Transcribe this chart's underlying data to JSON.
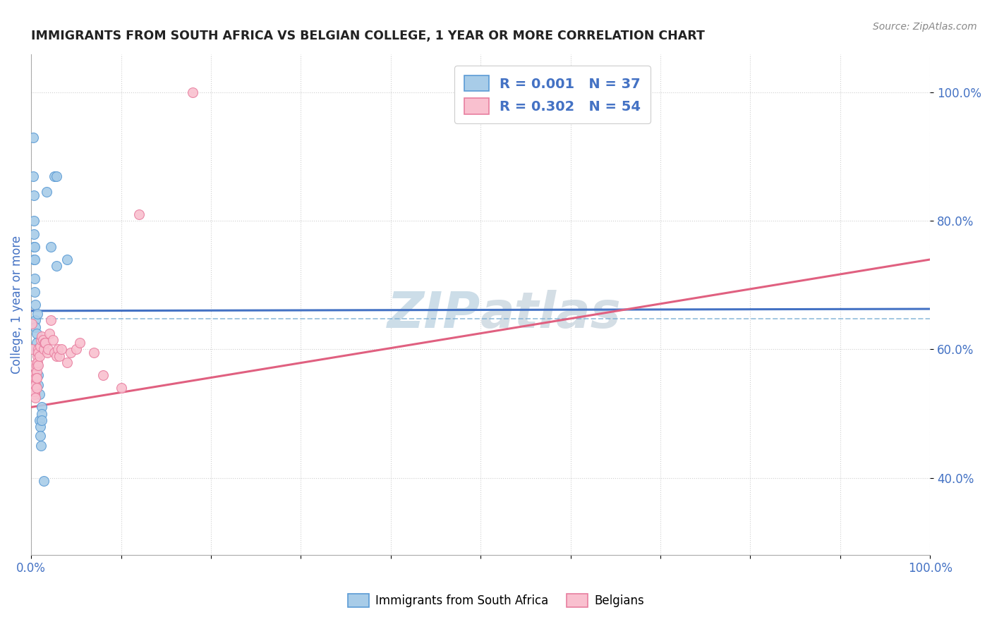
{
  "title": "IMMIGRANTS FROM SOUTH AFRICA VS BELGIAN COLLEGE, 1 YEAR OR MORE CORRELATION CHART",
  "source_text": "Source: ZipAtlas.com",
  "ylabel": "College, 1 year or more",
  "xlim": [
    0.0,
    1.0
  ],
  "ylim": [
    0.28,
    1.06
  ],
  "xtick_labels": [
    "0.0%",
    "",
    "",
    "",
    "",
    "",
    "",
    "",
    "",
    "",
    "100.0%"
  ],
  "xtick_vals": [
    0.0,
    0.1,
    0.2,
    0.3,
    0.4,
    0.5,
    0.6,
    0.7,
    0.8,
    0.9,
    1.0
  ],
  "ytick_labels": [
    "40.0%",
    "60.0%",
    "80.0%",
    "100.0%"
  ],
  "ytick_vals": [
    0.4,
    0.6,
    0.8,
    1.0
  ],
  "legend_r1": "R = 0.001",
  "legend_n1": "N = 37",
  "legend_r2": "R = 0.302",
  "legend_n2": "N = 54",
  "color_blue": "#a8cce8",
  "color_pink": "#f9c0cf",
  "edge_blue": "#5b9bd5",
  "edge_pink": "#e87fa0",
  "line_blue": "#4472c4",
  "line_pink": "#e06080",
  "dashed_blue": "#7bafd4",
  "watermark_color": "#ccdde8",
  "background_color": "#ffffff",
  "grid_color": "#bbbbbb",
  "title_color": "#222222",
  "label_color": "#4472c4",
  "tick_color": "#4472c4",
  "source_color": "#888888",
  "blue_scatter": [
    [
      0.002,
      0.93
    ],
    [
      0.002,
      0.87
    ],
    [
      0.003,
      0.84
    ],
    [
      0.003,
      0.8
    ],
    [
      0.003,
      0.78
    ],
    [
      0.003,
      0.76
    ],
    [
      0.003,
      0.74
    ],
    [
      0.004,
      0.76
    ],
    [
      0.004,
      0.74
    ],
    [
      0.004,
      0.71
    ],
    [
      0.004,
      0.69
    ],
    [
      0.005,
      0.67
    ],
    [
      0.005,
      0.645
    ],
    [
      0.005,
      0.635
    ],
    [
      0.006,
      0.625
    ],
    [
      0.006,
      0.61
    ],
    [
      0.006,
      0.6
    ],
    [
      0.007,
      0.655
    ],
    [
      0.007,
      0.595
    ],
    [
      0.007,
      0.575
    ],
    [
      0.008,
      0.56
    ],
    [
      0.008,
      0.545
    ],
    [
      0.009,
      0.53
    ],
    [
      0.009,
      0.49
    ],
    [
      0.01,
      0.48
    ],
    [
      0.01,
      0.465
    ],
    [
      0.011,
      0.45
    ],
    [
      0.012,
      0.51
    ],
    [
      0.012,
      0.5
    ],
    [
      0.012,
      0.49
    ],
    [
      0.014,
      0.395
    ],
    [
      0.022,
      0.76
    ],
    [
      0.026,
      0.87
    ],
    [
      0.028,
      0.87
    ],
    [
      0.04,
      0.74
    ],
    [
      0.017,
      0.845
    ],
    [
      0.028,
      0.73
    ]
  ],
  "pink_scatter": [
    [
      0.001,
      0.64
    ],
    [
      0.001,
      0.6
    ],
    [
      0.002,
      0.575
    ],
    [
      0.002,
      0.56
    ],
    [
      0.002,
      0.545
    ],
    [
      0.003,
      0.535
    ],
    [
      0.003,
      0.56
    ],
    [
      0.003,
      0.55
    ],
    [
      0.003,
      0.54
    ],
    [
      0.004,
      0.53
    ],
    [
      0.004,
      0.55
    ],
    [
      0.004,
      0.535
    ],
    [
      0.004,
      0.545
    ],
    [
      0.004,
      0.535
    ],
    [
      0.005,
      0.525
    ],
    [
      0.005,
      0.555
    ],
    [
      0.005,
      0.545
    ],
    [
      0.006,
      0.54
    ],
    [
      0.006,
      0.575
    ],
    [
      0.006,
      0.565
    ],
    [
      0.006,
      0.555
    ],
    [
      0.006,
      0.555
    ],
    [
      0.007,
      0.59
    ],
    [
      0.007,
      0.58
    ],
    [
      0.008,
      0.575
    ],
    [
      0.008,
      0.6
    ],
    [
      0.008,
      0.595
    ],
    [
      0.009,
      0.59
    ],
    [
      0.01,
      0.605
    ],
    [
      0.011,
      0.615
    ],
    [
      0.012,
      0.62
    ],
    [
      0.013,
      0.615
    ],
    [
      0.014,
      0.6
    ],
    [
      0.015,
      0.61
    ],
    [
      0.016,
      0.61
    ],
    [
      0.018,
      0.595
    ],
    [
      0.019,
      0.6
    ],
    [
      0.02,
      0.625
    ],
    [
      0.022,
      0.645
    ],
    [
      0.024,
      0.615
    ],
    [
      0.026,
      0.595
    ],
    [
      0.028,
      0.59
    ],
    [
      0.03,
      0.6
    ],
    [
      0.031,
      0.59
    ],
    [
      0.034,
      0.6
    ],
    [
      0.04,
      0.58
    ],
    [
      0.044,
      0.595
    ],
    [
      0.05,
      0.6
    ],
    [
      0.054,
      0.61
    ],
    [
      0.07,
      0.595
    ],
    [
      0.08,
      0.56
    ],
    [
      0.1,
      0.54
    ],
    [
      0.12,
      0.81
    ],
    [
      0.18,
      1.0
    ]
  ],
  "blue_line_x": [
    0.0,
    1.0
  ],
  "blue_line_y": [
    0.66,
    0.663
  ],
  "pink_line_x": [
    0.0,
    1.0
  ],
  "pink_line_y": [
    0.51,
    0.74
  ],
  "dashed_line_x": [
    0.0,
    1.0
  ],
  "dashed_line_y": [
    0.648,
    0.648
  ]
}
